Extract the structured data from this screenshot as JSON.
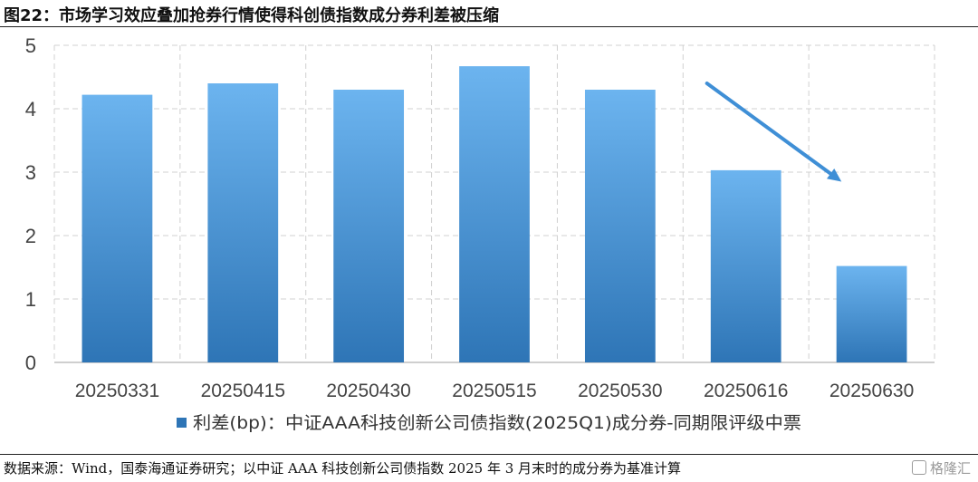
{
  "figure": {
    "title": "图22：市场学习效应叠加抢券行情使得科创债指数成分券利差被压缩",
    "source": "数据来源：Wind，国泰海通证券研究；以中证 AAA 科技创新公司债指数 2025 年 3 月末时的成分券为基准计算",
    "watermark": "格隆汇"
  },
  "chart_data": {
    "type": "bar",
    "categories": [
      "20250331",
      "20250415",
      "20250430",
      "20250515",
      "20250530",
      "20250616",
      "20250630"
    ],
    "series": [
      {
        "name": "利差(bp)：中证AAA科技创新公司债指数(2025Q1)成分券-同期限评级中票",
        "values": [
          4.22,
          4.4,
          4.3,
          4.67,
          4.3,
          3.03,
          1.52
        ]
      }
    ],
    "ylim": [
      0,
      5
    ],
    "yticks": [
      "0",
      "1",
      "2",
      "3",
      "4",
      "5"
    ],
    "grid": true,
    "legend_position": "bottom",
    "annotation": "downward arrow over last two bars",
    "colors": {
      "bar_top": "#6cb4ef",
      "bar_bottom": "#2e75b6",
      "arrow": "#3f8fd6",
      "grid": "#d0d0d0"
    }
  }
}
